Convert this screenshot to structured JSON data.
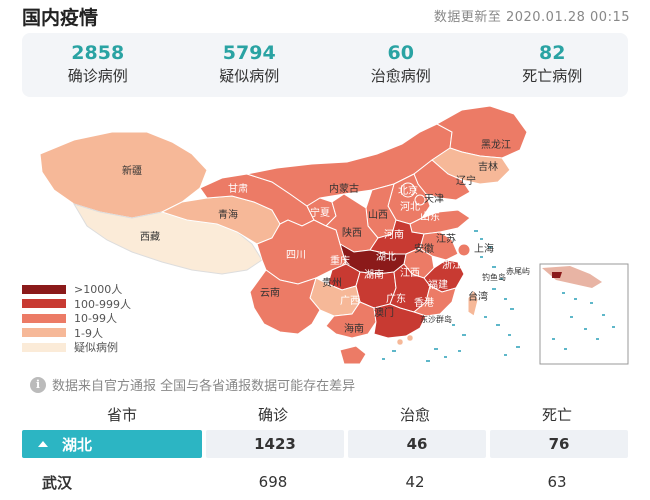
{
  "header": {
    "title": "国内疫情",
    "update_time": "数据更新至 2020.01.28 00:15"
  },
  "stats": [
    {
      "number": "2858",
      "label": "确诊病例"
    },
    {
      "number": "5794",
      "label": "疑似病例"
    },
    {
      "number": "60",
      "label": "治愈病例"
    },
    {
      "number": "82",
      "label": "死亡病例"
    }
  ],
  "map": {
    "colors": {
      "level1": "#8b1a1a",
      "level2": "#c83a32",
      "level3": "#ec7b66",
      "level4": "#f6b898",
      "level5": "#fbebd8"
    },
    "regions": {
      "xinjiang": "新疆",
      "xizang": "西藏",
      "qinghai": "青海",
      "gansu": "甘肃",
      "neimenggu": "内蒙古",
      "heilongjiang": "黑龙江",
      "jilin": "吉林",
      "liaoning": "辽宁",
      "beijing": "北京",
      "tianjin": "天津",
      "hebei": "河北",
      "shanxi": "山西",
      "shandong": "山东",
      "ningxia": "宁夏",
      "shaanxi": "陕西",
      "henan": "河南",
      "jiangsu": "江苏",
      "anhui": "安徽",
      "shanghai": "上海",
      "hubei": "湖北",
      "sichuan": "四川",
      "chongqing": "重庆",
      "zhejiang": "浙江",
      "hunan": "湖南",
      "jiangxi": "江西",
      "guizhou": "贵州",
      "yunnan": "云南",
      "guangxi": "广西",
      "guangdong": "广东",
      "fujian": "福建",
      "taiwan": "台湾",
      "hongkong": "香港",
      "macau": "澳门",
      "hainan": "海南"
    },
    "islands": {
      "diaoyu": "钓鱼岛",
      "chiwei": "赤尾屿",
      "dongsha": "东沙群岛"
    }
  },
  "legend": [
    {
      "label": ">1000人",
      "color": "#8b1a1a"
    },
    {
      "label": "100-999人",
      "color": "#c83a32"
    },
    {
      "label": "10-99人",
      "color": "#ec7b66"
    },
    {
      "label": "1-9人",
      "color": "#f6b898"
    },
    {
      "label": "疑似病例",
      "color": "#fbebd8"
    }
  ],
  "notice": {
    "icon_text": "i",
    "text": "数据来自官方通报 全国与各省通报数据可能存在差异"
  },
  "table": {
    "headers": [
      "省市",
      "确诊",
      "治愈",
      "死亡"
    ],
    "rows": [
      {
        "name": "湖北",
        "confirmed": "1423",
        "cured": "46",
        "deaths": "76"
      },
      {
        "name": "武汉",
        "confirmed": "698",
        "cured": "42",
        "deaths": "63"
      }
    ]
  }
}
